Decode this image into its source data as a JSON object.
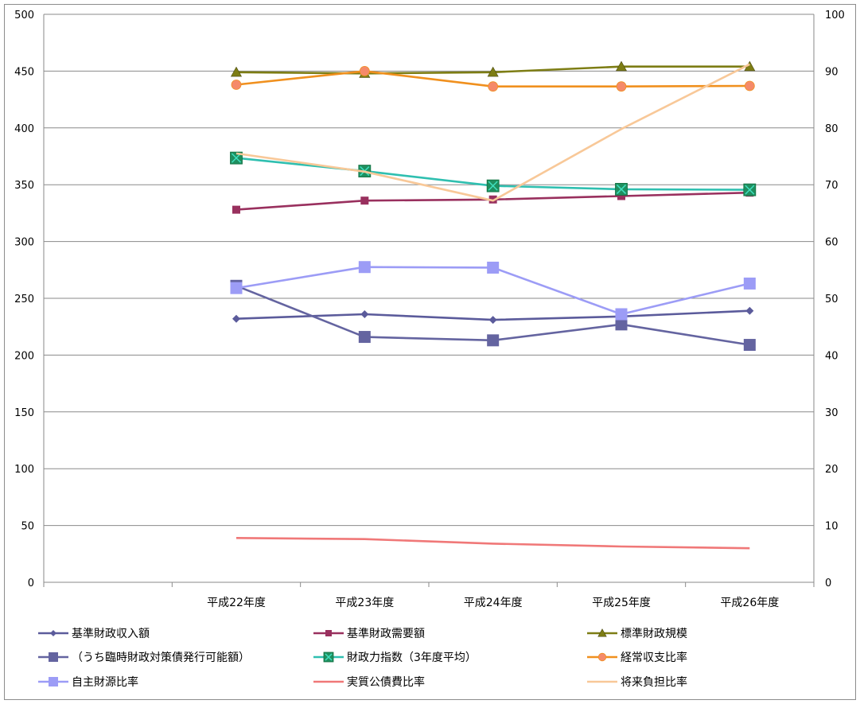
{
  "chart_data": {
    "type": "line",
    "categories": [
      "",
      "平成22年度",
      "平成23年度",
      "平成24年度",
      "平成25年度",
      "平成26年度"
    ],
    "y_left": {
      "min": 0,
      "max": 500,
      "step": 50,
      "ticks": [
        "0",
        "50",
        "100",
        "150",
        "200",
        "250",
        "300",
        "350",
        "400",
        "450",
        "500"
      ]
    },
    "y_right": {
      "min": 0,
      "max": 100,
      "step": 10,
      "ticks": [
        "0",
        "10",
        "20",
        "30",
        "40",
        "50",
        "60",
        "70",
        "80",
        "90",
        "100"
      ]
    },
    "grid": true,
    "legend_position": "bottom",
    "series": [
      {
        "name": "基準財政収入額",
        "axis": "left",
        "color": "#5b5b9b",
        "marker": "diamond",
        "values": [
          null,
          232,
          236,
          231,
          234,
          239
        ]
      },
      {
        "name": "基準財政需要額",
        "axis": "left",
        "color": "#99305e",
        "marker": "square",
        "values": [
          null,
          328,
          336,
          337,
          340,
          343
        ]
      },
      {
        "name": "標準財政規模",
        "axis": "left",
        "color": "#7d7d14",
        "marker": "triangle",
        "values": [
          null,
          449,
          448,
          449,
          454,
          454
        ]
      },
      {
        "name": "（うち臨時財政対策債発行可能額）",
        "axis": "left",
        "color": "#6464a0",
        "marker": "square-lg",
        "values": [
          null,
          261,
          216,
          213,
          227,
          209
        ]
      },
      {
        "name": "財政力指数（3年度平均）",
        "axis": "right",
        "color": "#2fbfb0",
        "marker": "xsquare",
        "values": [
          null,
          74.7,
          72.4,
          69.8,
          69.2,
          69.1
        ]
      },
      {
        "name": "経常収支比率",
        "axis": "right",
        "color": "#f0901e",
        "marker": "circle",
        "values": [
          null,
          87.6,
          90.0,
          87.3,
          87.3,
          87.4
        ]
      },
      {
        "name": "自主財源比率",
        "axis": "right",
        "color": "#9c9cf6",
        "marker": "square-lg",
        "values": [
          null,
          51.8,
          55.5,
          55.4,
          47.2,
          52.6
        ]
      },
      {
        "name": "実質公債費比率",
        "axis": "right",
        "color": "#f07878",
        "marker": "none",
        "values": [
          null,
          7.8,
          7.6,
          6.8,
          6.3,
          6.0
        ]
      },
      {
        "name": "将来負担比率",
        "axis": "right",
        "color": "#f8c898",
        "marker": "none",
        "values": [
          null,
          75.5,
          72.3,
          67.2,
          79.8,
          91.2
        ]
      }
    ]
  }
}
